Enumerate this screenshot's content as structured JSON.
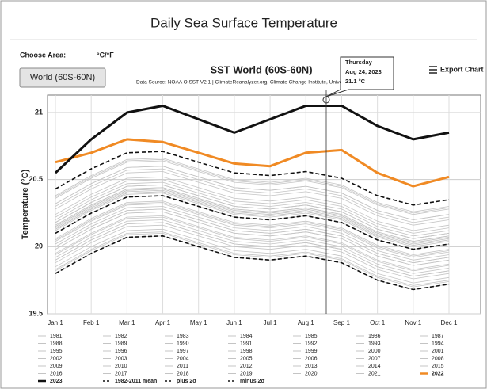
{
  "header": {
    "title": "Daily Sea Surface Temperature",
    "choose_area": "Choose Area:",
    "units": "°C/°F",
    "area_button": "World (60S-60N)",
    "export": "Export Chart"
  },
  "tooltip": {
    "day": "Thursday",
    "date": "Aug 24, 2023",
    "value": "21.1 °C"
  },
  "chart_data": {
    "type": "line",
    "title": "SST World (60S-60N)",
    "subtitle": "Data Source: NOAA OISST V2.1 | ClimateReanalyzer.org, Climate Change Institute, Universit",
    "y_label": "Temperature (°C)",
    "categories": [
      "Jan 1",
      "Feb 1",
      "Mar 1",
      "Apr 1",
      "May 1",
      "Jun 1",
      "Jul 1",
      "Aug 1",
      "Sep 1",
      "Oct 1",
      "Nov 1",
      "Dec 1"
    ],
    "ylim": [
      19.5,
      21.13
    ],
    "yticks": [
      19.5,
      20,
      20.5,
      21
    ],
    "grid": true,
    "series": [
      {
        "name": "1981",
        "color": "#c4c4c4",
        "values": [
          19.85,
          20.0,
          20.12,
          20.13,
          20.05,
          19.97,
          19.95,
          19.98,
          19.93,
          19.8,
          19.73,
          19.77
        ]
      },
      {
        "name": "1982",
        "color": "#c4c4c4",
        "values": [
          19.8,
          19.95,
          20.07,
          20.08,
          20.0,
          19.92,
          19.9,
          19.93,
          19.88,
          19.75,
          19.68,
          19.72
        ]
      },
      {
        "name": "1983",
        "color": "#c4c4c4",
        "values": [
          19.9,
          20.05,
          20.17,
          20.18,
          20.1,
          20.02,
          20.0,
          20.03,
          19.98,
          19.85,
          19.78,
          19.82
        ]
      },
      {
        "name": "1984",
        "color": "#c4c4c4",
        "values": [
          19.82,
          19.97,
          20.09,
          20.1,
          20.02,
          19.94,
          19.92,
          19.95,
          19.9,
          19.77,
          19.7,
          19.74
        ]
      },
      {
        "name": "1985",
        "color": "#c4c4c4",
        "values": [
          19.83,
          19.98,
          20.1,
          20.11,
          20.03,
          19.95,
          19.93,
          19.96,
          19.91,
          19.78,
          19.71,
          19.75
        ]
      },
      {
        "name": "1986",
        "color": "#c4c4c4",
        "values": [
          19.88,
          20.03,
          20.15,
          20.16,
          20.08,
          20.0,
          19.98,
          20.01,
          19.96,
          19.83,
          19.76,
          19.8
        ]
      },
      {
        "name": "1987",
        "color": "#c4c4c4",
        "values": [
          19.98,
          20.13,
          20.25,
          20.26,
          20.18,
          20.1,
          20.08,
          20.11,
          20.06,
          19.93,
          19.86,
          19.9
        ]
      },
      {
        "name": "1988",
        "color": "#c4c4c4",
        "values": [
          19.94,
          20.09,
          20.21,
          20.22,
          20.14,
          20.06,
          20.04,
          20.07,
          20.02,
          19.89,
          19.82,
          19.86
        ]
      },
      {
        "name": "1989",
        "color": "#c4c4c4",
        "values": [
          19.9,
          20.05,
          20.17,
          20.18,
          20.1,
          20.02,
          20.0,
          20.03,
          19.98,
          19.85,
          19.78,
          19.82
        ]
      },
      {
        "name": "1990",
        "color": "#c4c4c4",
        "values": [
          20.0,
          20.15,
          20.27,
          20.28,
          20.2,
          20.12,
          20.1,
          20.13,
          20.08,
          19.95,
          19.88,
          19.92
        ]
      },
      {
        "name": "1991",
        "color": "#c4c4c4",
        "values": [
          19.98,
          20.13,
          20.25,
          20.26,
          20.18,
          20.1,
          20.08,
          20.11,
          20.06,
          19.93,
          19.86,
          19.9
        ]
      },
      {
        "name": "1992",
        "color": "#c4c4c4",
        "values": [
          19.92,
          20.07,
          20.19,
          20.2,
          20.12,
          20.04,
          20.02,
          20.05,
          20.0,
          19.87,
          19.8,
          19.84
        ]
      },
      {
        "name": "1993",
        "color": "#c4c4c4",
        "values": [
          19.95,
          20.1,
          20.22,
          20.23,
          20.15,
          20.07,
          20.05,
          20.08,
          20.03,
          19.9,
          19.83,
          19.87
        ]
      },
      {
        "name": "1994",
        "color": "#c4c4c4",
        "values": [
          20.0,
          20.15,
          20.27,
          20.28,
          20.2,
          20.12,
          20.1,
          20.13,
          20.08,
          19.95,
          19.88,
          19.92
        ]
      },
      {
        "name": "1995",
        "color": "#c4c4c4",
        "values": [
          20.05,
          20.2,
          20.32,
          20.33,
          20.25,
          20.17,
          20.15,
          20.18,
          20.13,
          20.0,
          19.93,
          19.97
        ]
      },
      {
        "name": "1996",
        "color": "#c4c4c4",
        "values": [
          20.02,
          20.17,
          20.29,
          20.3,
          20.22,
          20.14,
          20.12,
          20.15,
          20.1,
          19.97,
          19.9,
          19.94
        ]
      },
      {
        "name": "1997",
        "color": "#c4c4c4",
        "values": [
          20.1,
          20.25,
          20.37,
          20.38,
          20.3,
          20.22,
          20.2,
          20.23,
          20.18,
          20.05,
          19.98,
          20.02
        ]
      },
      {
        "name": "1998",
        "color": "#c4c4c4",
        "values": [
          20.15,
          20.3,
          20.42,
          20.43,
          20.35,
          20.27,
          20.25,
          20.28,
          20.23,
          20.1,
          20.03,
          20.07
        ]
      },
      {
        "name": "1999",
        "color": "#c4c4c4",
        "values": [
          20.04,
          20.19,
          20.31,
          20.32,
          20.24,
          20.16,
          20.14,
          20.17,
          20.12,
          19.99,
          19.92,
          19.96
        ]
      },
      {
        "name": "2000",
        "color": "#c4c4c4",
        "values": [
          20.06,
          20.21,
          20.33,
          20.34,
          20.26,
          20.18,
          20.16,
          20.19,
          20.14,
          20.01,
          19.94,
          19.98
        ]
      },
      {
        "name": "2001",
        "color": "#c4c4c4",
        "values": [
          20.12,
          20.27,
          20.39,
          20.4,
          20.32,
          20.24,
          20.22,
          20.25,
          20.2,
          20.07,
          20.0,
          20.04
        ]
      },
      {
        "name": "2002",
        "color": "#c4c4c4",
        "values": [
          20.15,
          20.3,
          20.42,
          20.43,
          20.35,
          20.27,
          20.25,
          20.28,
          20.23,
          20.1,
          20.03,
          20.07
        ]
      },
      {
        "name": "2003",
        "color": "#c4c4c4",
        "values": [
          20.16,
          20.31,
          20.43,
          20.44,
          20.36,
          20.28,
          20.26,
          20.29,
          20.24,
          20.11,
          20.04,
          20.08
        ]
      },
      {
        "name": "2004",
        "color": "#c4c4c4",
        "values": [
          20.14,
          20.29,
          20.41,
          20.42,
          20.34,
          20.26,
          20.24,
          20.27,
          20.22,
          20.09,
          20.02,
          20.06
        ]
      },
      {
        "name": "2005",
        "color": "#c4c4c4",
        "values": [
          20.18,
          20.33,
          20.45,
          20.46,
          20.38,
          20.3,
          20.28,
          20.31,
          20.26,
          20.13,
          20.06,
          20.1
        ]
      },
      {
        "name": "2006",
        "color": "#c4c4c4",
        "values": [
          20.16,
          20.31,
          20.43,
          20.44,
          20.36,
          20.28,
          20.26,
          20.29,
          20.24,
          20.11,
          20.04,
          20.08
        ]
      },
      {
        "name": "2007",
        "color": "#c4c4c4",
        "values": [
          20.13,
          20.28,
          20.4,
          20.41,
          20.33,
          20.25,
          20.23,
          20.26,
          20.21,
          20.08,
          20.01,
          20.05
        ]
      },
      {
        "name": "2008",
        "color": "#c4c4c4",
        "values": [
          20.1,
          20.25,
          20.37,
          20.38,
          20.3,
          20.22,
          20.2,
          20.23,
          20.18,
          20.05,
          19.98,
          20.02
        ]
      },
      {
        "name": "2009",
        "color": "#c4c4c4",
        "values": [
          20.18,
          20.33,
          20.45,
          20.46,
          20.38,
          20.3,
          20.28,
          20.31,
          20.26,
          20.13,
          20.06,
          20.1
        ]
      },
      {
        "name": "2010",
        "color": "#c4c4c4",
        "values": [
          20.22,
          20.37,
          20.49,
          20.5,
          20.42,
          20.34,
          20.32,
          20.35,
          20.3,
          20.17,
          20.1,
          20.14
        ]
      },
      {
        "name": "2011",
        "color": "#c4c4c4",
        "values": [
          20.13,
          20.28,
          20.4,
          20.41,
          20.33,
          20.25,
          20.23,
          20.26,
          20.21,
          20.08,
          20.01,
          20.05
        ]
      },
      {
        "name": "2012",
        "color": "#c4c4c4",
        "values": [
          20.18,
          20.33,
          20.45,
          20.46,
          20.38,
          20.3,
          20.28,
          20.31,
          20.26,
          20.13,
          20.06,
          20.1
        ]
      },
      {
        "name": "2013",
        "color": "#c4c4c4",
        "values": [
          20.2,
          20.35,
          20.47,
          20.48,
          20.4,
          20.32,
          20.3,
          20.33,
          20.28,
          20.15,
          20.08,
          20.12
        ]
      },
      {
        "name": "2014",
        "color": "#c4c4c4",
        "values": [
          20.24,
          20.39,
          20.51,
          20.52,
          20.44,
          20.36,
          20.34,
          20.37,
          20.32,
          20.19,
          20.12,
          20.16
        ]
      },
      {
        "name": "2015",
        "color": "#c4c4c4",
        "values": [
          20.32,
          20.47,
          20.59,
          20.6,
          20.52,
          20.44,
          20.42,
          20.45,
          20.4,
          20.27,
          20.2,
          20.24
        ]
      },
      {
        "name": "2016",
        "color": "#c4c4c4",
        "values": [
          20.38,
          20.53,
          20.65,
          20.66,
          20.58,
          20.5,
          20.48,
          20.51,
          20.46,
          20.33,
          20.26,
          20.3
        ]
      },
      {
        "name": "2017",
        "color": "#c4c4c4",
        "values": [
          20.32,
          20.47,
          20.59,
          20.6,
          20.52,
          20.44,
          20.42,
          20.45,
          20.4,
          20.27,
          20.2,
          20.24
        ]
      },
      {
        "name": "2018",
        "color": "#c4c4c4",
        "values": [
          20.28,
          20.43,
          20.55,
          20.56,
          20.48,
          20.4,
          20.38,
          20.41,
          20.36,
          20.23,
          20.16,
          20.2
        ]
      },
      {
        "name": "2019",
        "color": "#c4c4c4",
        "values": [
          20.36,
          20.51,
          20.63,
          20.64,
          20.56,
          20.48,
          20.46,
          20.49,
          20.44,
          20.31,
          20.24,
          20.28
        ]
      },
      {
        "name": "2020",
        "color": "#c4c4c4",
        "values": [
          20.37,
          20.52,
          20.64,
          20.65,
          20.57,
          20.49,
          20.47,
          20.5,
          20.45,
          20.32,
          20.25,
          20.29
        ]
      },
      {
        "name": "2021",
        "color": "#c4c4c4",
        "values": [
          20.3,
          20.45,
          20.57,
          20.58,
          20.5,
          20.42,
          20.4,
          20.43,
          20.38,
          20.25,
          20.18,
          20.22
        ]
      },
      {
        "name": "2022",
        "color": "#f08a24",
        "values": [
          20.63,
          20.7,
          20.8,
          20.78,
          20.7,
          20.62,
          20.6,
          20.7,
          20.72,
          20.55,
          20.45,
          20.52
        ]
      },
      {
        "name": "2023",
        "color": "#111111",
        "values": [
          20.55,
          20.8,
          21.0,
          21.05,
          20.95,
          20.85,
          20.95,
          21.05,
          21.05,
          20.9,
          20.8,
          20.85
        ]
      },
      {
        "name": "1982-2011 mean",
        "color": "#111111",
        "dash": true,
        "values": [
          20.1,
          20.25,
          20.37,
          20.38,
          20.3,
          20.22,
          20.2,
          20.23,
          20.18,
          20.05,
          19.98,
          20.02
        ]
      },
      {
        "name": "plus 2σ",
        "color": "#111111",
        "dash": true,
        "values": [
          20.43,
          20.58,
          20.7,
          20.71,
          20.63,
          20.55,
          20.53,
          20.56,
          20.51,
          20.38,
          20.31,
          20.35
        ]
      },
      {
        "name": "minus 2σ",
        "color": "#111111",
        "dash": true,
        "values": [
          19.8,
          19.95,
          20.07,
          20.08,
          20.0,
          19.92,
          19.9,
          19.93,
          19.88,
          19.75,
          19.68,
          19.72
        ]
      }
    ]
  }
}
